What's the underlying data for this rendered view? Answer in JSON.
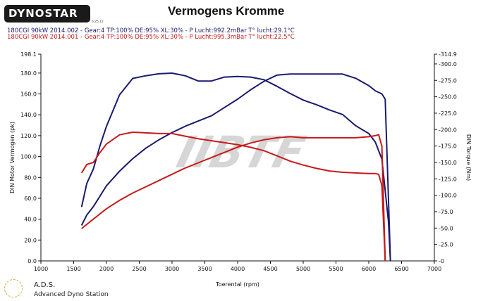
{
  "header": {
    "logo_text": "DYNOSTAR",
    "logo_version": "6.25.12",
    "title": "Vermogens Kromme",
    "run1": "180CGI 90kW 2014.002 - Gear:4 TP:100% DE:95% XL:30%    - P Lucht:992.2mBar T° lucht:29.1°C",
    "run2": "180CGI 90kW 2014.001 - Gear:4 TP:100% DE:95% XL:30%    - P Lucht:995.3mBar T° lucht:22.5°C"
  },
  "footer": {
    "name": "A.D.S.",
    "subtitle": "Advanced Dyno Station"
  },
  "colors": {
    "run1": "#1a1a6e",
    "run2": "#c81a1a",
    "watermark": "#c8c8c8",
    "watermark_accent": "#e06060"
  },
  "watermark_text": "IIBTF",
  "chart_data": {
    "type": "line",
    "title": "Vermogens Kromme",
    "xlabel": "Toerental (rpm)",
    "ylabel_left": "DIN Motor Vermogen (pk)",
    "ylabel_right": "DIN Torque (Nm)",
    "xlim": [
      1000,
      7000
    ],
    "ylim_left": [
      0,
      198.1
    ],
    "ylim_right": [
      0,
      314.9
    ],
    "x_ticks": [
      1000,
      1500,
      2000,
      2500,
      3000,
      3500,
      4000,
      4500,
      5000,
      5500,
      6000,
      6500,
      7000
    ],
    "y_ticks_left": [
      "0.0",
      "20.0",
      "40.0",
      "60.0",
      "80.0",
      "100.0",
      "120.0",
      "140.0",
      "160.0",
      "180.0",
      "198.1"
    ],
    "y_ticks_right": [
      "-0",
      "-25.0",
      "-50.0",
      "-75.0",
      "-100.0",
      "-125.0",
      "-150.0",
      "-175.0",
      "-200.0",
      "-225.0",
      "-250.0",
      "-275.0",
      "-300.0",
      "-314.9"
    ],
    "grid": false,
    "series": [
      {
        "name": "180CGI 90kW 2014.002",
        "quantity": "power_pk",
        "axis": "left",
        "color": "#1a1a6e",
        "points": [
          [
            1620,
            34
          ],
          [
            1700,
            44
          ],
          [
            1800,
            52
          ],
          [
            1900,
            62
          ],
          [
            2000,
            72
          ],
          [
            2200,
            86
          ],
          [
            2400,
            98
          ],
          [
            2600,
            108
          ],
          [
            2800,
            116
          ],
          [
            3000,
            123
          ],
          [
            3200,
            129
          ],
          [
            3400,
            134
          ],
          [
            3600,
            139
          ],
          [
            3800,
            147
          ],
          [
            4000,
            155
          ],
          [
            4200,
            164
          ],
          [
            4400,
            172
          ],
          [
            4600,
            178
          ],
          [
            4800,
            179
          ],
          [
            5000,
            179
          ],
          [
            5200,
            179
          ],
          [
            5400,
            179
          ],
          [
            5600,
            179
          ],
          [
            5800,
            175
          ],
          [
            6000,
            168
          ],
          [
            6100,
            163
          ],
          [
            6200,
            160
          ],
          [
            6250,
            155
          ],
          [
            6300,
            60
          ],
          [
            6330,
            0
          ]
        ]
      },
      {
        "name": "180CGI 90kW 2014.002",
        "quantity": "torque_nm",
        "axis": "right",
        "color": "#1a1a6e",
        "points": [
          [
            1620,
            82
          ],
          [
            1700,
            118
          ],
          [
            1800,
            140
          ],
          [
            1900,
            175
          ],
          [
            2000,
            205
          ],
          [
            2200,
            253
          ],
          [
            2400,
            278
          ],
          [
            2600,
            282
          ],
          [
            2800,
            285
          ],
          [
            3000,
            286
          ],
          [
            3200,
            282
          ],
          [
            3400,
            274
          ],
          [
            3600,
            274
          ],
          [
            3800,
            280
          ],
          [
            4000,
            281
          ],
          [
            4200,
            280
          ],
          [
            4400,
            276
          ],
          [
            4600,
            266
          ],
          [
            4800,
            255
          ],
          [
            5000,
            245
          ],
          [
            5200,
            238
          ],
          [
            5400,
            230
          ],
          [
            5600,
            223
          ],
          [
            5800,
            206
          ],
          [
            6000,
            194
          ],
          [
            6100,
            181
          ],
          [
            6200,
            155
          ],
          [
            6300,
            60
          ],
          [
            6330,
            0
          ]
        ]
      },
      {
        "name": "180CGI 90kW 2014.001",
        "quantity": "power_pk",
        "axis": "left",
        "color": "#c81a1a",
        "points": [
          [
            1620,
            31
          ],
          [
            1800,
            40
          ],
          [
            2000,
            50
          ],
          [
            2200,
            58
          ],
          [
            2400,
            65
          ],
          [
            2600,
            71
          ],
          [
            2800,
            77
          ],
          [
            3000,
            83
          ],
          [
            3200,
            89
          ],
          [
            3400,
            94
          ],
          [
            3600,
            99
          ],
          [
            3800,
            104
          ],
          [
            4000,
            109
          ],
          [
            4200,
            113
          ],
          [
            4400,
            116
          ],
          [
            4600,
            118
          ],
          [
            4800,
            119
          ],
          [
            5000,
            118
          ],
          [
            5200,
            118
          ],
          [
            5400,
            118
          ],
          [
            5600,
            118
          ],
          [
            5800,
            118
          ],
          [
            6000,
            119
          ],
          [
            6100,
            120
          ],
          [
            6150,
            121
          ],
          [
            6200,
            110
          ],
          [
            6250,
            0
          ]
        ]
      },
      {
        "name": "180CGI 90kW 2014.001",
        "quantity": "torque_nm",
        "axis": "right",
        "color": "#c81a1a",
        "points": [
          [
            1620,
            134
          ],
          [
            1700,
            147
          ],
          [
            1800,
            150
          ],
          [
            1900,
            165
          ],
          [
            2000,
            178
          ],
          [
            2200,
            192
          ],
          [
            2400,
            196
          ],
          [
            2600,
            195
          ],
          [
            2800,
            194
          ],
          [
            3000,
            194
          ],
          [
            3200,
            190
          ],
          [
            3400,
            186
          ],
          [
            3600,
            183
          ],
          [
            3800,
            180
          ],
          [
            4000,
            177
          ],
          [
            4200,
            173
          ],
          [
            4400,
            168
          ],
          [
            4600,
            160
          ],
          [
            4800,
            152
          ],
          [
            5000,
            146
          ],
          [
            5200,
            141
          ],
          [
            5400,
            137
          ],
          [
            5600,
            135
          ],
          [
            5800,
            134
          ],
          [
            6000,
            133
          ],
          [
            6100,
            133
          ],
          [
            6150,
            132
          ],
          [
            6200,
            115
          ],
          [
            6250,
            0
          ]
        ]
      }
    ]
  }
}
